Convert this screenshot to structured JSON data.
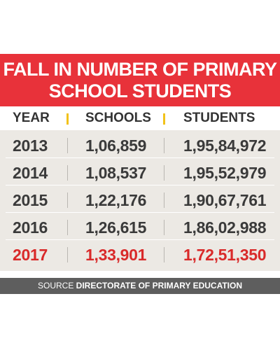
{
  "chart_data": {
    "type": "table",
    "title_lines": [
      "FALL IN NUMBER OF PRIMARY",
      "SCHOOL STUDENTS"
    ],
    "columns": [
      "YEAR",
      "SCHOOLS",
      "STUDENTS"
    ],
    "rows": [
      {
        "year": "2013",
        "schools": "1,06,859",
        "students": "1,95,84,972"
      },
      {
        "year": "2014",
        "schools": "1,08,537",
        "students": "1,95,52,979"
      },
      {
        "year": "2015",
        "schools": "1,22,176",
        "students": "1,90,67,761"
      },
      {
        "year": "2016",
        "schools": "1,26,615",
        "students": "1,86,02,988"
      },
      {
        "year": "2017",
        "schools": "1,33,901",
        "students": "1,72,51,350"
      }
    ],
    "highlight_row": 4,
    "header_separator_color": "#f2c21a",
    "highlight_color": "#d92a2a",
    "title_background": "#e8323a",
    "source_label": "SOURCE",
    "source_name": "DIRECTORATE OF PRIMARY EDUCATION"
  }
}
